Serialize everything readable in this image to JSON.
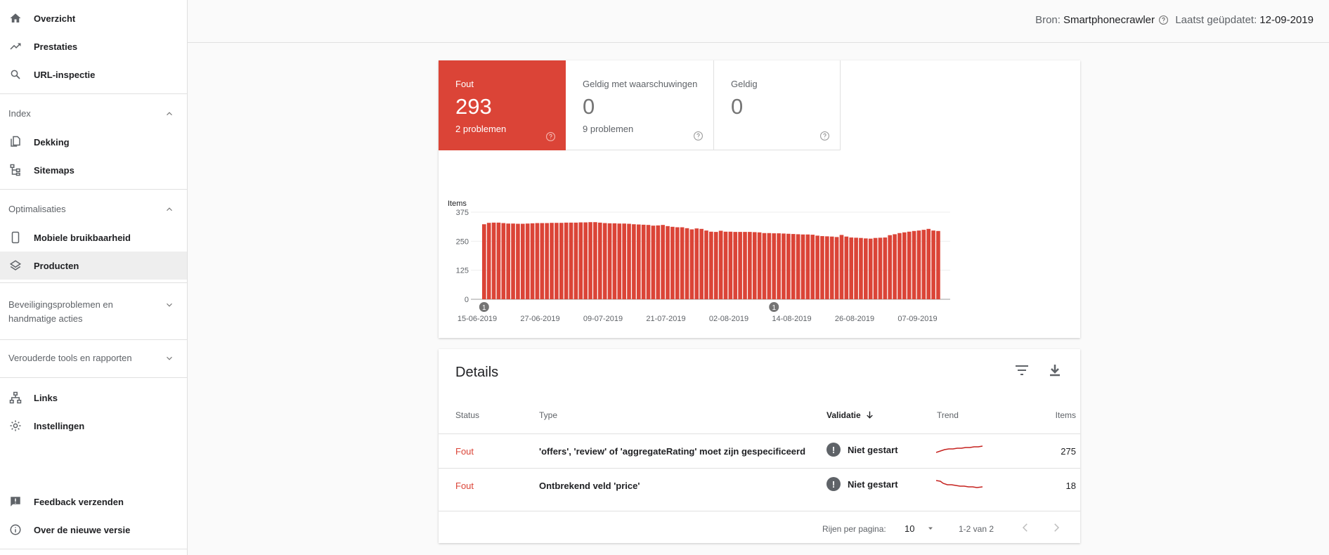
{
  "sidebar": {
    "top_items": [
      {
        "label": "Overzicht",
        "icon": "home-icon"
      },
      {
        "label": "Prestaties",
        "icon": "trending-up-icon"
      },
      {
        "label": "URL-inspectie",
        "icon": "search-icon"
      }
    ],
    "index_section": {
      "title": "Index",
      "items": [
        {
          "label": "Dekking",
          "icon": "copy-icon"
        },
        {
          "label": "Sitemaps",
          "icon": "sitemap-icon"
        }
      ]
    },
    "opt_section": {
      "title": "Optimalisaties",
      "items": [
        {
          "label": "Mobiele bruikbaarheid",
          "icon": "phone-icon"
        },
        {
          "label": "Producten",
          "icon": "layers-icon",
          "active": true
        }
      ]
    },
    "security_line1": "Beveiligingsproblemen en",
    "security_line2": "handmatige acties",
    "legacy": "Verouderde tools en rapporten",
    "bottom_items": [
      {
        "label": "Links",
        "icon": "links-icon"
      },
      {
        "label": "Instellingen",
        "icon": "settings-icon"
      }
    ],
    "footer_items": [
      {
        "label": "Feedback verzenden",
        "icon": "feedback-icon"
      },
      {
        "label": "Over de nieuwe versie",
        "icon": "info-icon"
      }
    ]
  },
  "topbar": {
    "source_label": "Bron:",
    "source_value": "Smartphonecrawler",
    "updated_label": "Laatst geüpdatet:",
    "updated_value": "12-09-2019"
  },
  "summary": {
    "error": {
      "label": "Fout",
      "value": "293",
      "sub": "2 problemen"
    },
    "warning": {
      "label": "Geldig met waarschuwingen",
      "value": "0",
      "sub": "9 problemen"
    },
    "valid": {
      "label": "Geldig",
      "value": "0"
    }
  },
  "colors": {
    "error": "#db4437",
    "text": "#202124",
    "muted": "#5f6368"
  },
  "chart_data": {
    "type": "bar",
    "ylabel": "Items",
    "ylim": [
      0,
      375
    ],
    "yticks": [
      0,
      125,
      250,
      375
    ],
    "xtick_labels": [
      "15-06-2019",
      "27-06-2019",
      "09-07-2019",
      "21-07-2019",
      "02-08-2019",
      "14-08-2019",
      "26-08-2019",
      "07-09-2019"
    ],
    "annotations": [
      {
        "label": "1",
        "at_index": 0
      },
      {
        "label": "1",
        "at_index": 60
      }
    ],
    "values": [
      323,
      329,
      330,
      330,
      328,
      326,
      326,
      325,
      325,
      326,
      327,
      328,
      328,
      328,
      329,
      329,
      329,
      330,
      330,
      330,
      331,
      331,
      332,
      332,
      330,
      328,
      327,
      327,
      326,
      326,
      325,
      323,
      322,
      321,
      320,
      317,
      318,
      320,
      315,
      312,
      310,
      310,
      306,
      301,
      305,
      303,
      296,
      291,
      290,
      295,
      291,
      291,
      290,
      290,
      290,
      290,
      289,
      288,
      285,
      285,
      284,
      284,
      283,
      282,
      281,
      280,
      279,
      279,
      278,
      274,
      272,
      271,
      270,
      268,
      277,
      270,
      266,
      265,
      264,
      262,
      261,
      264,
      265,
      266,
      276,
      280,
      285,
      288,
      291,
      294,
      296,
      299,
      303,
      296,
      294
    ]
  },
  "details": {
    "title": "Details",
    "columns": {
      "status": "Status",
      "type": "Type",
      "validation": "Validatie",
      "trend": "Trend",
      "items": "Items"
    },
    "rows": [
      {
        "status": "Fout",
        "type": "'offers', 'review' of 'aggregateRating' moet zijn gespecificeerd",
        "validation": "Niet gestart",
        "items": "275"
      },
      {
        "status": "Fout",
        "type": "Ontbrekend veld 'price'",
        "validation": "Niet gestart",
        "items": "18"
      }
    ],
    "pager": {
      "rows_per_page_label": "Rijen per pagina:",
      "rows_per_page": "10",
      "range": "1-2 van 2"
    }
  }
}
